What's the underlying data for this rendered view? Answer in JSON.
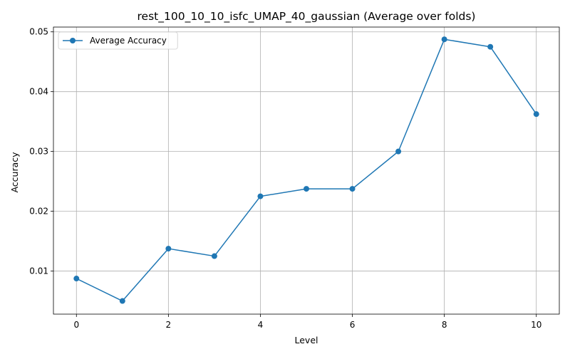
{
  "chart_data": {
    "type": "line",
    "title": "rest_100_10_10_isfc_UMAP_40_gaussian (Average over folds)",
    "xlabel": "Level",
    "ylabel": "Accuracy",
    "x": [
      0,
      1,
      2,
      3,
      4,
      5,
      6,
      7,
      8,
      9,
      10
    ],
    "series": [
      {
        "name": "Average Accuracy",
        "values": [
          0.00875,
          0.005,
          0.01375,
          0.0125,
          0.0225,
          0.02375,
          0.02375,
          0.03,
          0.04875,
          0.0475,
          0.03625
        ],
        "color": "#1f77b4",
        "marker": "circle"
      }
    ],
    "xlim": [
      -0.5,
      10.5
    ],
    "ylim": [
      0.0028,
      0.0508
    ],
    "xticks": [
      0,
      2,
      4,
      6,
      8,
      10
    ],
    "xtick_labels": [
      "0",
      "2",
      "4",
      "6",
      "8",
      "10"
    ],
    "yticks": [
      0.01,
      0.02,
      0.03,
      0.04,
      0.05
    ],
    "ytick_labels": [
      "0.01",
      "0.02",
      "0.03",
      "0.04",
      "0.05"
    ],
    "grid": true,
    "legend": "top-left"
  }
}
